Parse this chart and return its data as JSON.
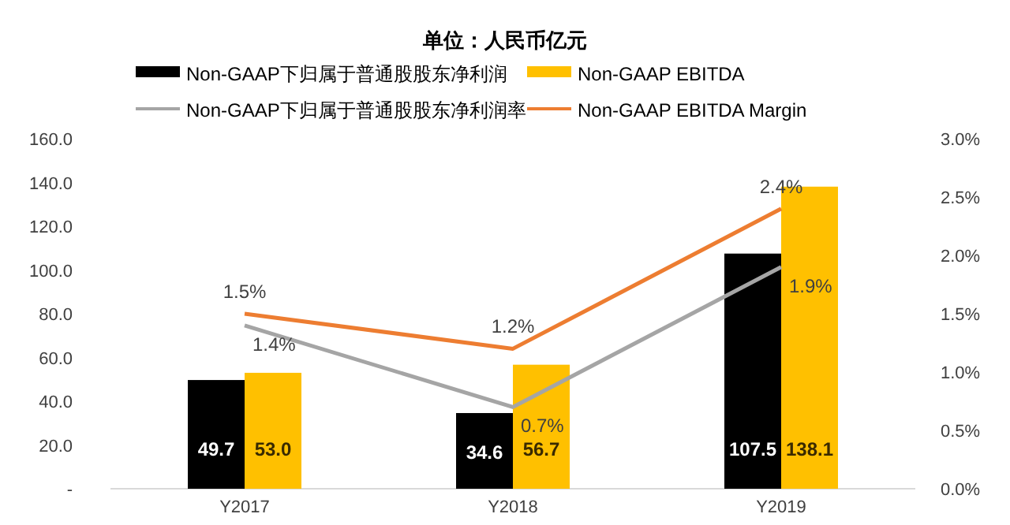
{
  "chart_data": {
    "type": "bar",
    "subtitle": "单位：人民币亿元",
    "categories": [
      "Y2017",
      "Y2018",
      "Y2019"
    ],
    "series": [
      {
        "name": "Non-GAAP下归属于普通股股东净利润",
        "color": "#000000",
        "values": [
          49.7,
          34.6,
          107.5
        ],
        "value_labels": [
          "49.7",
          "34.6",
          "107.5"
        ]
      },
      {
        "name": "Non-GAAP EBITDA",
        "color": "#ffc000",
        "values": [
          53.0,
          56.7,
          138.1
        ],
        "value_labels": [
          "53.0",
          "56.7",
          "138.1"
        ]
      },
      {
        "name": "Non-GAAP下归属于普通股股东净利润率",
        "type": "line",
        "axis": "y2",
        "color": "#a5a5a5",
        "values": [
          1.4,
          0.7,
          1.9
        ],
        "value_labels": [
          "1.4%",
          "0.7%",
          "1.9%"
        ]
      },
      {
        "name": "Non-GAAP EBITDA Margin",
        "type": "line",
        "axis": "y2",
        "color": "#ed7d31",
        "values": [
          1.5,
          1.2,
          2.4
        ],
        "value_labels": [
          "1.5%",
          "1.2%",
          "2.4%"
        ]
      }
    ],
    "ylim": [
      0,
      160
    ],
    "yticks": [
      {
        "value": 0,
        "label": "-"
      },
      {
        "value": 20,
        "label": "20.0"
      },
      {
        "value": 40,
        "label": "40.0"
      },
      {
        "value": 60,
        "label": "60.0"
      },
      {
        "value": 80,
        "label": "80.0"
      },
      {
        "value": 100,
        "label": "100.0"
      },
      {
        "value": 120,
        "label": "120.0"
      },
      {
        "value": 140,
        "label": "140.0"
      },
      {
        "value": 160,
        "label": "160.0"
      }
    ],
    "y2lim": [
      0,
      3
    ],
    "y2ticks": [
      {
        "value": 0,
        "label": "0.0%"
      },
      {
        "value": 0.5,
        "label": "0.5%"
      },
      {
        "value": 1,
        "label": "1.0%"
      },
      {
        "value": 1.5,
        "label": "1.5%"
      },
      {
        "value": 2,
        "label": "2.0%"
      },
      {
        "value": 2.5,
        "label": "2.5%"
      },
      {
        "value": 3,
        "label": "3.0%"
      }
    ],
    "grid": false,
    "legend": "top"
  }
}
